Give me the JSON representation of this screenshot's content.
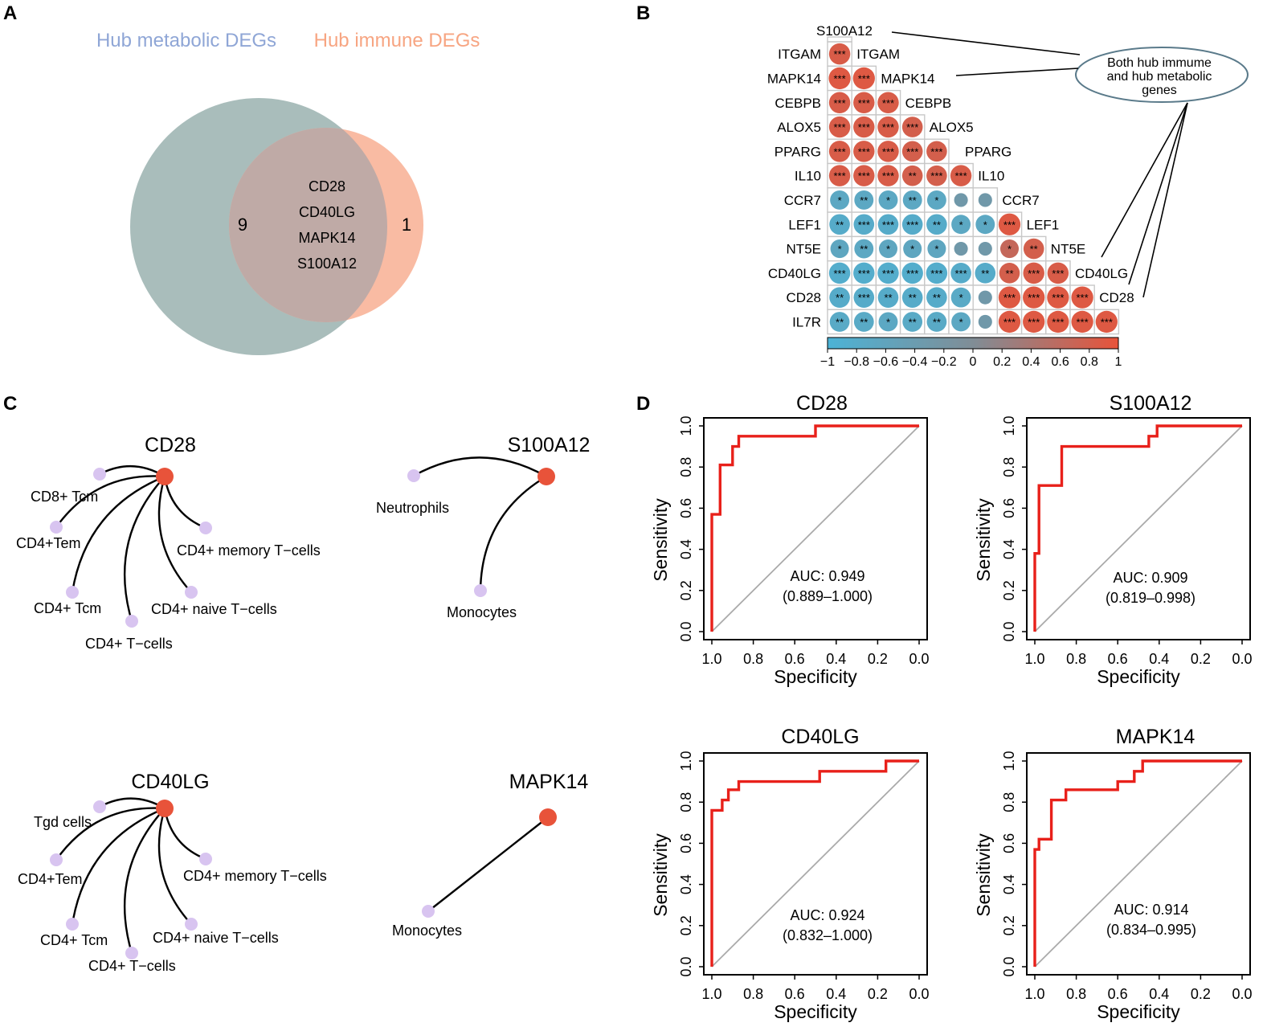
{
  "chart_data": [
    {
      "panel": "A",
      "type": "venn",
      "sets": [
        {
          "name": "Hub metabolic DEGs",
          "color": "#8fa6d6",
          "fill": "#a9bdbb",
          "unique_count": "9"
        },
        {
          "name": "Hub immune DEGs",
          "color": "#f7a582",
          "fill": "#f9bba3",
          "unique_count": "1"
        }
      ],
      "overlap_fill": "#bfaaa6",
      "intersection": [
        "CD28",
        "CD40LG",
        "MAPK14",
        "S100A12"
      ]
    },
    {
      "panel": "B",
      "type": "heatmap",
      "title": "Correlation matrix (lower triangle)",
      "genes": [
        "S100A12",
        "ITGAM",
        "MAPK14",
        "CEBPB",
        "ALOX5",
        "PPARG",
        "IL10",
        "CCR7",
        "LEF1",
        "NT5E",
        "CD40LG",
        "CD28",
        "IL7R"
      ],
      "cells": [
        [
          "***"
        ],
        [
          "***",
          "***"
        ],
        [
          "***",
          "***",
          "***"
        ],
        [
          "***",
          "***",
          "***",
          "***"
        ],
        [
          "***",
          "***",
          "***",
          "***",
          "***"
        ],
        [
          "***",
          "***",
          "***",
          "**",
          "***",
          "***"
        ],
        [
          "*",
          "**",
          "*",
          "**",
          "*",
          "",
          ""
        ],
        [
          "**",
          "***",
          "***",
          "***",
          "**",
          "*",
          "*",
          "***"
        ],
        [
          "*",
          "**",
          "*",
          "*",
          "*",
          "",
          "",
          "*",
          "**"
        ],
        [
          "***",
          "***",
          "***",
          "***",
          "***",
          "***",
          "**",
          "**",
          "***",
          "***"
        ],
        [
          "**",
          "***",
          "**",
          "**",
          "**",
          "*",
          "",
          "***",
          "***",
          "***",
          "***"
        ],
        [
          "**",
          "**",
          "*",
          "**",
          "**",
          "*",
          "",
          "***",
          "***",
          "***",
          "***",
          "***"
        ]
      ],
      "values": [
        [
          0.85
        ],
        [
          0.9,
          0.9
        ],
        [
          0.85,
          0.85,
          0.85
        ],
        [
          0.85,
          0.85,
          0.85,
          0.8
        ],
        [
          0.85,
          0.85,
          0.85,
          0.8,
          0.8
        ],
        [
          0.85,
          0.85,
          0.85,
          0.8,
          0.8,
          0.85
        ],
        [
          -0.7,
          -0.7,
          -0.7,
          -0.7,
          -0.7,
          -0.3,
          -0.3
        ],
        [
          -0.8,
          -0.8,
          -0.8,
          -0.8,
          -0.8,
          -0.7,
          -0.7,
          0.9
        ],
        [
          -0.65,
          -0.7,
          -0.65,
          -0.65,
          -0.65,
          -0.3,
          -0.3,
          0.65,
          0.8
        ],
        [
          -0.85,
          -0.85,
          -0.85,
          -0.85,
          -0.85,
          -0.8,
          -0.8,
          0.8,
          0.85,
          0.85
        ],
        [
          -0.8,
          -0.8,
          -0.8,
          -0.8,
          -0.8,
          -0.75,
          -0.3,
          0.9,
          0.9,
          0.9,
          0.9
        ],
        [
          -0.75,
          -0.75,
          -0.7,
          -0.75,
          -0.75,
          -0.7,
          -0.3,
          0.9,
          0.9,
          0.9,
          0.9,
          0.9
        ]
      ],
      "colorbar": {
        "ticks": [
          "−1",
          "−0.8",
          "−0.6",
          "−0.4",
          "−0.2",
          "0",
          "0.2",
          "0.4",
          "0.6",
          "0.8",
          "1"
        ],
        "low_color": "#4cb3d6",
        "mid_color": "#808d96",
        "high_color": "#e8533a"
      },
      "annotation": {
        "lines": [
          "Both hub immume",
          "and hub metabolic",
          "genes"
        ],
        "targets": [
          "S100A12",
          "MAPK14",
          "CD40LG",
          "CD28"
        ]
      }
    },
    {
      "panel": "C",
      "type": "network",
      "hub_color": "#e8533a",
      "leaf_color": "#d8c4f0",
      "networks": [
        {
          "hub": "CD28",
          "nodes": [
            "CD8+ Tcm",
            "CD4+Tem",
            "CD4+ memory T−cells",
            "CD4+ Tcm",
            "CD4+ naive T−cells",
            "CD4+ T−cells"
          ]
        },
        {
          "hub": "S100A12",
          "nodes": [
            "Neutrophils",
            "Monocytes"
          ]
        },
        {
          "hub": "CD40LG",
          "nodes": [
            "Tgd cells",
            "CD4+Tem",
            "CD4+ memory T−cells",
            "CD4+ Tcm",
            "CD4+ naive T−cells",
            "CD4+ T−cells"
          ]
        },
        {
          "hub": "MAPK14",
          "nodes": [
            "Monocytes"
          ]
        }
      ]
    },
    {
      "panel": "D",
      "type": "line",
      "xlabel": "Specificity",
      "ylabel": "Sensitivity",
      "xlim": [
        1.0,
        0.0
      ],
      "ylim": [
        0.0,
        1.0
      ],
      "x_ticks": [
        "1.0",
        "0.8",
        "0.6",
        "0.4",
        "0.2",
        "0.0"
      ],
      "y_ticks": [
        "0.0",
        "0.2",
        "0.4",
        "0.6",
        "0.8",
        "1.0"
      ],
      "line_color": "#e8201a",
      "diagonal_color": "#aaaaaa",
      "series": [
        {
          "name": "CD28",
          "auc": "AUC: 0.949",
          "ci": "(0.889–1.000)",
          "x": [
            1.0,
            1.0,
            0.99,
            0.99,
            0.96,
            0.96,
            0.93,
            0.93,
            0.9,
            0.9,
            0.87,
            0.87,
            0.5,
            0.5,
            0.0
          ],
          "y": [
            0.0,
            0.57,
            0.57,
            0.57,
            0.57,
            0.81,
            0.81,
            0.81,
            0.81,
            0.9,
            0.9,
            0.95,
            0.95,
            1.0,
            1.0
          ]
        },
        {
          "name": "S100A12",
          "auc": "AUC: 0.909",
          "ci": "(0.819–0.998)",
          "x": [
            1.0,
            1.0,
            0.98,
            0.98,
            0.95,
            0.95,
            0.87,
            0.87,
            0.45,
            0.45,
            0.41,
            0.41,
            0.0
          ],
          "y": [
            0.0,
            0.38,
            0.38,
            0.71,
            0.71,
            0.71,
            0.71,
            0.9,
            0.9,
            0.95,
            0.95,
            1.0,
            1.0
          ]
        },
        {
          "name": "CD40LG",
          "auc": "AUC: 0.924",
          "ci": "(0.832–1.000)",
          "x": [
            1.0,
            1.0,
            0.98,
            0.98,
            0.95,
            0.95,
            0.92,
            0.92,
            0.9,
            0.9,
            0.87,
            0.87,
            0.48,
            0.48,
            0.16,
            0.16,
            0.0
          ],
          "y": [
            0.0,
            0.76,
            0.76,
            0.76,
            0.76,
            0.81,
            0.81,
            0.86,
            0.86,
            0.86,
            0.86,
            0.9,
            0.9,
            0.95,
            0.95,
            1.0,
            1.0
          ]
        },
        {
          "name": "MAPK14",
          "auc": "AUC: 0.914",
          "ci": "(0.834–0.995)",
          "x": [
            1.0,
            1.0,
            0.98,
            0.98,
            0.95,
            0.95,
            0.92,
            0.92,
            0.85,
            0.85,
            0.73,
            0.73,
            0.6,
            0.6,
            0.52,
            0.52,
            0.48,
            0.48,
            0.0
          ],
          "y": [
            0.0,
            0.57,
            0.57,
            0.62,
            0.62,
            0.62,
            0.62,
            0.81,
            0.81,
            0.86,
            0.86,
            0.86,
            0.86,
            0.9,
            0.9,
            0.95,
            0.95,
            1.0,
            1.0
          ]
        }
      ]
    }
  ],
  "panel_labels": [
    "A",
    "B",
    "C",
    "D"
  ]
}
